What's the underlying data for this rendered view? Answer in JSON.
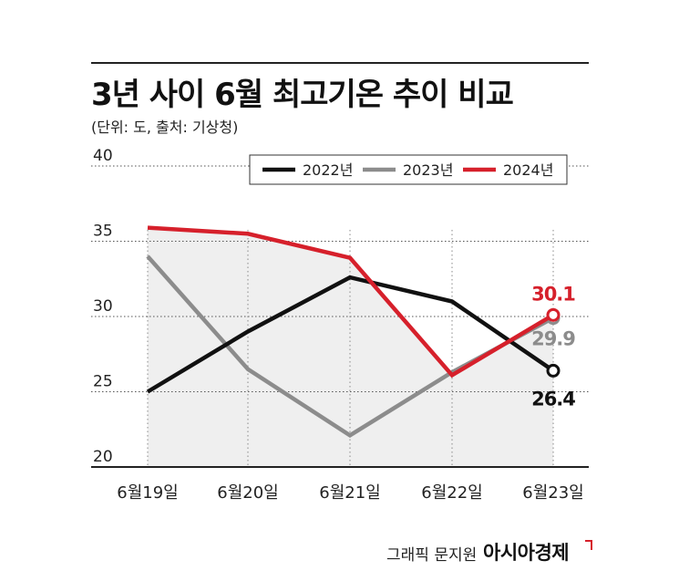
{
  "header": {
    "title": "3년 사이 6월 최고기온 추이 비교",
    "subtitle": "(단위: 도, 출처: 기상청)"
  },
  "footer": {
    "credit": "그래픽 문지원",
    "brand": "아시아경제"
  },
  "chart_data": {
    "type": "line",
    "categories": [
      "6월19일",
      "6월20일",
      "6월21일",
      "6월22일",
      "6월23일"
    ],
    "ylim": [
      20,
      40
    ],
    "yticks": [
      "20",
      "25",
      "30",
      "35",
      "40"
    ],
    "grid": true,
    "legend": "top-right",
    "series": [
      {
        "name": "2022년",
        "color": "#111111",
        "values": [
          25.0,
          29.0,
          32.6,
          31.0,
          26.4
        ]
      },
      {
        "name": "2023년",
        "color": "#8c8c8c",
        "values": [
          34.0,
          26.5,
          22.1,
          26.3,
          29.9
        ]
      },
      {
        "name": "2024년",
        "color": "#d6202b",
        "values": [
          35.9,
          35.5,
          33.9,
          26.1,
          30.1
        ]
      }
    ],
    "end_labels": [
      {
        "series": 2,
        "text": "30.1",
        "color": "#d6202b"
      },
      {
        "series": 1,
        "text": "29.9",
        "color": "#8c8c8c"
      },
      {
        "series": 0,
        "text": "26.4",
        "color": "#111111"
      }
    ],
    "shaded_series": 2,
    "shade_color": "#efefef"
  }
}
